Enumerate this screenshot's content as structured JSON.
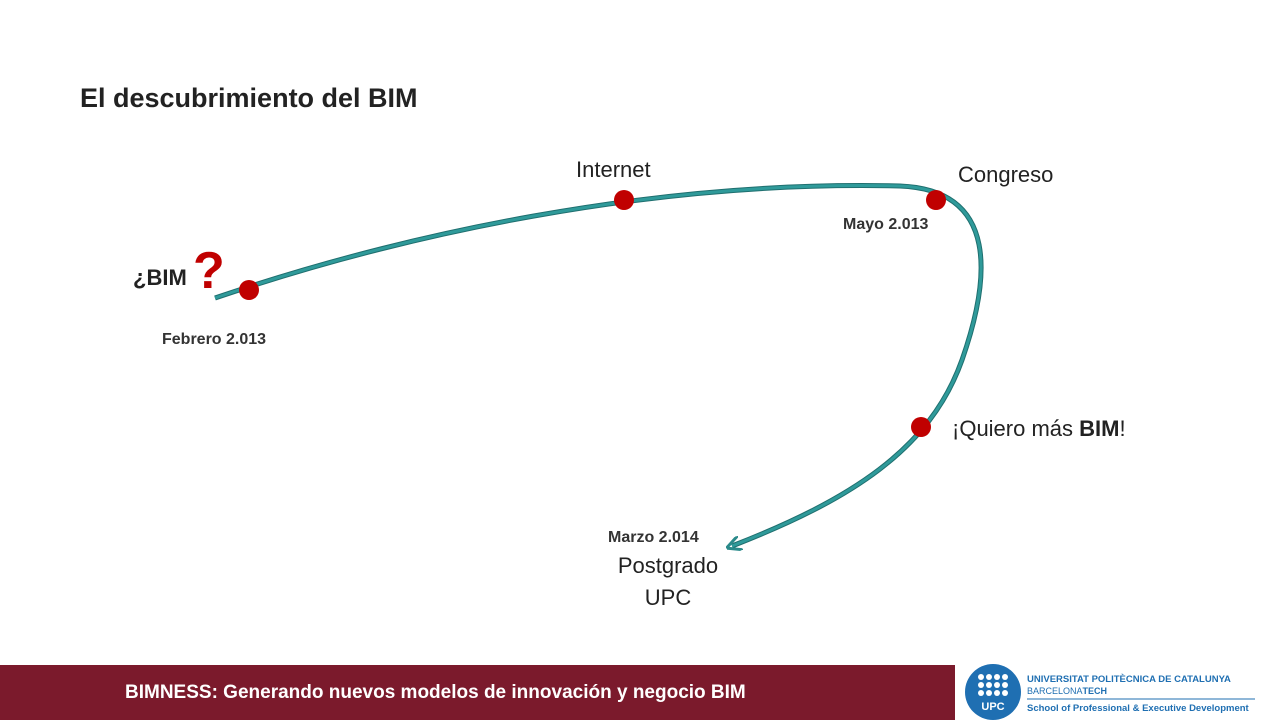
{
  "title": "El descubrimiento del BIM",
  "nodes": [
    {
      "label": "¿BIM",
      "mark": "?",
      "date": "Febrero 2.013"
    },
    {
      "label": "Internet"
    },
    {
      "label": "Congreso",
      "date": "Mayo 2.013"
    },
    {
      "label_parts": [
        "¡Quiero más ",
        "BIM",
        "!"
      ]
    },
    {
      "date": "Marzo 2.014",
      "label_lines": [
        "Postgrado",
        "UPC"
      ]
    }
  ],
  "footer": {
    "text": "BIMNESS: Generando nuevos modelos de innovación y negocio BIM",
    "logo": {
      "short": "UPC",
      "line1": "UNIVERSITAT POLITÈCNICA DE CATALUNYA",
      "line2": "BARCELONA",
      "line2b": "TECH",
      "line3": "School of Professional & Executive Development"
    }
  }
}
